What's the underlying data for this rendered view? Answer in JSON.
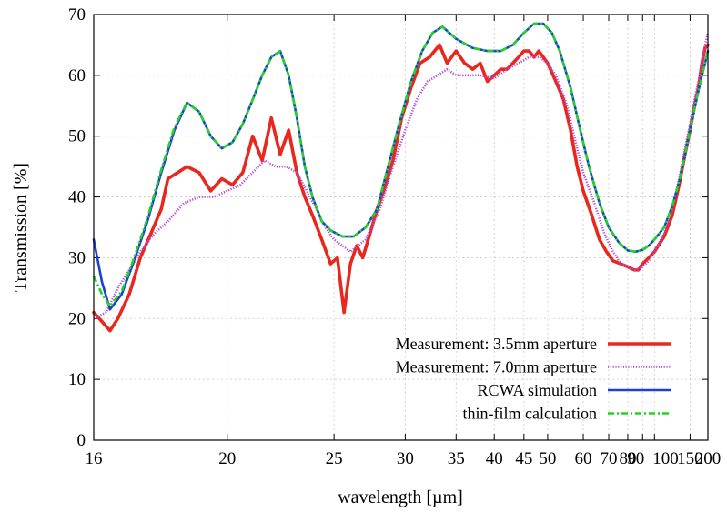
{
  "chart_data": {
    "type": "line",
    "title": "",
    "xlabel": "wavelength  [µm]",
    "ylabel": "Transmission [%]",
    "x_scale": "reciprocal",
    "xlim": [
      16,
      200
    ],
    "ylim": [
      0,
      70
    ],
    "grid": true,
    "legend_position": "bottom-right",
    "x_ticks": [
      16,
      20,
      25,
      30,
      35,
      40,
      45,
      50,
      60,
      70,
      80,
      90,
      100,
      150,
      200
    ],
    "x_tick_labels": [
      "16",
      "20",
      "25",
      "30",
      "35",
      "40",
      "45",
      "50",
      "60",
      "70",
      "80",
      "90",
      "100",
      "150",
      "200"
    ],
    "y_ticks": [
      0,
      10,
      20,
      30,
      40,
      50,
      60,
      70
    ],
    "y_tick_labels": [
      "0",
      "10",
      "20",
      "30",
      "40",
      "50",
      "60",
      "70"
    ],
    "series": [
      {
        "name": "Measurement: 3.5mm aperture",
        "color": "#e8281e",
        "style": "solid-thick",
        "points": [
          [
            16,
            21
          ],
          [
            16.2,
            19.5
          ],
          [
            16.4,
            18
          ],
          [
            16.6,
            20
          ],
          [
            16.9,
            24
          ],
          [
            17.2,
            30
          ],
          [
            17.5,
            34
          ],
          [
            17.8,
            38
          ],
          [
            18,
            43
          ],
          [
            18.3,
            44
          ],
          [
            18.6,
            45
          ],
          [
            19,
            44
          ],
          [
            19.4,
            41
          ],
          [
            19.8,
            43
          ],
          [
            20.2,
            42
          ],
          [
            20.6,
            44
          ],
          [
            21,
            50
          ],
          [
            21.4,
            46
          ],
          [
            21.8,
            53
          ],
          [
            22.2,
            47
          ],
          [
            22.6,
            51
          ],
          [
            23,
            44
          ],
          [
            23.4,
            40
          ],
          [
            23.8,
            37
          ],
          [
            24.3,
            33
          ],
          [
            24.8,
            29
          ],
          [
            25.2,
            30
          ],
          [
            25.6,
            21
          ],
          [
            26,
            29
          ],
          [
            26.4,
            32
          ],
          [
            26.8,
            30
          ],
          [
            27.3,
            34
          ],
          [
            27.8,
            38
          ],
          [
            28.3,
            41
          ],
          [
            29,
            46
          ],
          [
            29.7,
            53
          ],
          [
            30.5,
            58
          ],
          [
            31.3,
            62
          ],
          [
            32.2,
            63
          ],
          [
            33.2,
            65
          ],
          [
            34,
            62
          ],
          [
            35,
            64
          ],
          [
            36,
            62
          ],
          [
            37,
            61
          ],
          [
            38,
            62
          ],
          [
            39,
            59
          ],
          [
            40,
            60
          ],
          [
            41,
            61
          ],
          [
            42,
            61
          ],
          [
            43,
            62
          ],
          [
            44,
            63
          ],
          [
            45,
            64
          ],
          [
            46,
            64
          ],
          [
            47,
            63
          ],
          [
            48,
            64
          ],
          [
            49,
            63
          ],
          [
            50,
            62
          ],
          [
            52,
            59
          ],
          [
            54,
            56
          ],
          [
            56,
            51
          ],
          [
            58,
            45
          ],
          [
            60,
            41
          ],
          [
            63,
            37
          ],
          [
            66,
            33
          ],
          [
            69,
            31
          ],
          [
            72,
            29.5
          ],
          [
            76,
            29
          ],
          [
            80,
            28.5
          ],
          [
            84,
            28
          ],
          [
            87,
            28
          ],
          [
            90,
            29
          ],
          [
            95,
            30
          ],
          [
            100,
            31
          ],
          [
            110,
            33.5
          ],
          [
            120,
            37
          ],
          [
            130,
            42
          ],
          [
            140,
            47
          ],
          [
            150,
            51
          ],
          [
            160,
            55
          ],
          [
            170,
            58
          ],
          [
            180,
            62
          ],
          [
            190,
            64.5
          ],
          [
            200,
            65
          ]
        ]
      },
      {
        "name": "Measurement: 7.0mm aperture",
        "color": "#b44bd6",
        "style": "dotted",
        "points": [
          [
            16,
            20
          ],
          [
            16.3,
            21
          ],
          [
            16.6,
            25
          ],
          [
            16.9,
            28
          ],
          [
            17.2,
            31
          ],
          [
            17.6,
            34
          ],
          [
            18,
            36
          ],
          [
            18.5,
            39
          ],
          [
            19,
            40
          ],
          [
            19.5,
            40
          ],
          [
            20,
            41
          ],
          [
            20.5,
            42
          ],
          [
            21,
            44
          ],
          [
            21.5,
            46
          ],
          [
            22,
            45
          ],
          [
            22.5,
            45
          ],
          [
            23,
            44
          ],
          [
            23.5,
            41
          ],
          [
            24,
            38
          ],
          [
            24.5,
            35
          ],
          [
            25,
            33
          ],
          [
            25.5,
            32
          ],
          [
            26,
            31
          ],
          [
            26.5,
            32
          ],
          [
            27,
            33
          ],
          [
            28,
            38
          ],
          [
            29,
            45
          ],
          [
            30,
            51
          ],
          [
            31,
            56
          ],
          [
            32,
            59
          ],
          [
            33,
            60
          ],
          [
            34,
            61
          ],
          [
            35,
            60
          ],
          [
            36,
            60
          ],
          [
            37,
            60
          ],
          [
            38,
            60
          ],
          [
            40,
            59.5
          ],
          [
            42,
            61
          ],
          [
            44,
            62
          ],
          [
            46,
            63
          ],
          [
            48,
            63
          ],
          [
            50,
            62
          ],
          [
            52,
            60
          ],
          [
            55,
            55
          ],
          [
            58,
            48
          ],
          [
            60,
            44
          ],
          [
            64,
            39
          ],
          [
            68,
            34
          ],
          [
            72,
            31
          ],
          [
            76,
            29
          ],
          [
            80,
            28.5
          ],
          [
            85,
            28
          ],
          [
            90,
            28.5
          ],
          [
            95,
            29.5
          ],
          [
            100,
            31
          ],
          [
            110,
            34
          ],
          [
            120,
            38
          ],
          [
            130,
            43
          ],
          [
            140,
            48
          ],
          [
            150,
            52
          ],
          [
            160,
            56
          ],
          [
            170,
            59
          ],
          [
            180,
            62
          ],
          [
            190,
            65
          ],
          [
            200,
            67
          ]
        ]
      },
      {
        "name": "RCWA simulation",
        "color": "#1e3fd6",
        "style": "solid",
        "points": [
          [
            16,
            33
          ],
          [
            16.2,
            26
          ],
          [
            16.4,
            21.5
          ],
          [
            16.7,
            24
          ],
          [
            17,
            29
          ],
          [
            17.4,
            36
          ],
          [
            17.8,
            44
          ],
          [
            18.2,
            51
          ],
          [
            18.6,
            55.5
          ],
          [
            19,
            54
          ],
          [
            19.4,
            50
          ],
          [
            19.8,
            48
          ],
          [
            20.2,
            49
          ],
          [
            20.6,
            52
          ],
          [
            21,
            56
          ],
          [
            21.4,
            60
          ],
          [
            21.8,
            63
          ],
          [
            22.2,
            64
          ],
          [
            22.6,
            60
          ],
          [
            23,
            53
          ],
          [
            23.4,
            45
          ],
          [
            23.8,
            40
          ],
          [
            24.3,
            36
          ],
          [
            24.8,
            34.5
          ],
          [
            25.5,
            33.5
          ],
          [
            26.2,
            33.5
          ],
          [
            27,
            35
          ],
          [
            27.8,
            38
          ],
          [
            28.5,
            44
          ],
          [
            29.5,
            52
          ],
          [
            30.5,
            59
          ],
          [
            31.5,
            64
          ],
          [
            32.5,
            67
          ],
          [
            33.5,
            68
          ],
          [
            35,
            66
          ],
          [
            37,
            64.5
          ],
          [
            39,
            64
          ],
          [
            41,
            64
          ],
          [
            43,
            65
          ],
          [
            45,
            67
          ],
          [
            47,
            68.5
          ],
          [
            49,
            68.5
          ],
          [
            51,
            67
          ],
          [
            53,
            64
          ],
          [
            56,
            58
          ],
          [
            59,
            51
          ],
          [
            62,
            45
          ],
          [
            66,
            39
          ],
          [
            70,
            35
          ],
          [
            75,
            32.5
          ],
          [
            80,
            31.2
          ],
          [
            85,
            31
          ],
          [
            90,
            31.3
          ],
          [
            95,
            32
          ],
          [
            100,
            33
          ],
          [
            110,
            35
          ],
          [
            120,
            38.5
          ],
          [
            130,
            42.5
          ],
          [
            140,
            47
          ],
          [
            150,
            51
          ],
          [
            160,
            54.5
          ],
          [
            170,
            57.5
          ],
          [
            180,
            60
          ],
          [
            190,
            62
          ],
          [
            200,
            64
          ]
        ]
      },
      {
        "name": "thin-film calculation",
        "color": "#22d322",
        "style": "dash-dot",
        "points": [
          [
            16,
            27
          ],
          [
            16.2,
            24
          ],
          [
            16.4,
            22
          ],
          [
            16.7,
            24.5
          ],
          [
            17,
            29.5
          ],
          [
            17.4,
            36.5
          ],
          [
            17.8,
            44.5
          ],
          [
            18.2,
            51.5
          ],
          [
            18.6,
            55.5
          ],
          [
            19,
            54
          ],
          [
            19.4,
            50
          ],
          [
            19.8,
            48
          ],
          [
            20.2,
            49
          ],
          [
            20.6,
            52
          ],
          [
            21,
            56
          ],
          [
            21.4,
            60
          ],
          [
            21.8,
            63
          ],
          [
            22.2,
            64
          ],
          [
            22.6,
            60
          ],
          [
            23,
            53
          ],
          [
            23.4,
            45
          ],
          [
            23.8,
            40
          ],
          [
            24.3,
            36
          ],
          [
            24.8,
            34.5
          ],
          [
            25.5,
            33.5
          ],
          [
            26.2,
            33.5
          ],
          [
            27,
            35
          ],
          [
            27.8,
            38
          ],
          [
            28.5,
            44
          ],
          [
            29.5,
            52
          ],
          [
            30.5,
            59
          ],
          [
            31.5,
            64
          ],
          [
            32.5,
            67
          ],
          [
            33.5,
            68
          ],
          [
            35,
            66
          ],
          [
            37,
            64.5
          ],
          [
            39,
            64
          ],
          [
            41,
            64
          ],
          [
            43,
            65
          ],
          [
            45,
            67
          ],
          [
            47,
            68.5
          ],
          [
            49,
            68.5
          ],
          [
            51,
            67
          ],
          [
            53,
            64
          ],
          [
            56,
            58
          ],
          [
            59,
            51
          ],
          [
            62,
            45
          ],
          [
            66,
            39
          ],
          [
            70,
            35
          ],
          [
            75,
            32.5
          ],
          [
            80,
            31.2
          ],
          [
            85,
            31
          ],
          [
            90,
            31.3
          ],
          [
            95,
            32
          ],
          [
            100,
            33
          ],
          [
            110,
            35
          ],
          [
            120,
            38.5
          ],
          [
            130,
            42.5
          ],
          [
            140,
            47
          ],
          [
            150,
            51
          ],
          [
            160,
            54.5
          ],
          [
            170,
            57.5
          ],
          [
            180,
            60
          ],
          [
            190,
            62
          ],
          [
            200,
            64
          ]
        ]
      }
    ]
  }
}
